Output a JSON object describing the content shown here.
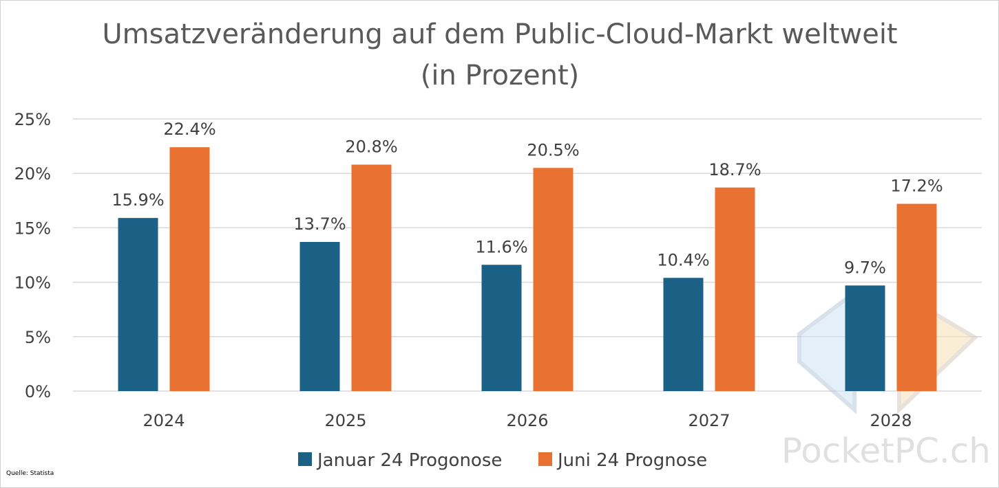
{
  "chart_data": {
    "type": "bar",
    "title_lines": [
      "Umsatzveränderung auf dem Public-Cloud-Markt weltweit",
      "(in Prozent)"
    ],
    "categories": [
      "2024",
      "2025",
      "2026",
      "2027",
      "2028"
    ],
    "series": [
      {
        "name": "Januar 24 Progonose",
        "color": "#1a6185",
        "values": [
          15.9,
          13.7,
          11.6,
          10.4,
          9.7
        ],
        "labels": [
          "15.9%",
          "13.7%",
          "11.6%",
          "10.4%",
          "9.7%"
        ]
      },
      {
        "name": "Juni 24 Prognose",
        "color": "#e97232",
        "values": [
          22.4,
          20.8,
          20.5,
          18.7,
          17.2
        ],
        "labels": [
          "22.4%",
          "20.8%",
          "20.5%",
          "18.7%",
          "17.2%"
        ]
      }
    ],
    "ylim": [
      0,
      25
    ],
    "yticks": [
      0,
      5,
      10,
      15,
      20,
      25
    ],
    "ytick_labels": [
      "0%",
      "5%",
      "10%",
      "15%",
      "20%",
      "25%"
    ],
    "grid": true,
    "legend": "bottom-center",
    "xlabel": "",
    "ylabel": ""
  },
  "source": "Quelle: Statista",
  "watermark": "PocketPC.ch",
  "colors": {
    "grid": "#d9d9d9",
    "text": "#404040",
    "title": "#595959"
  }
}
